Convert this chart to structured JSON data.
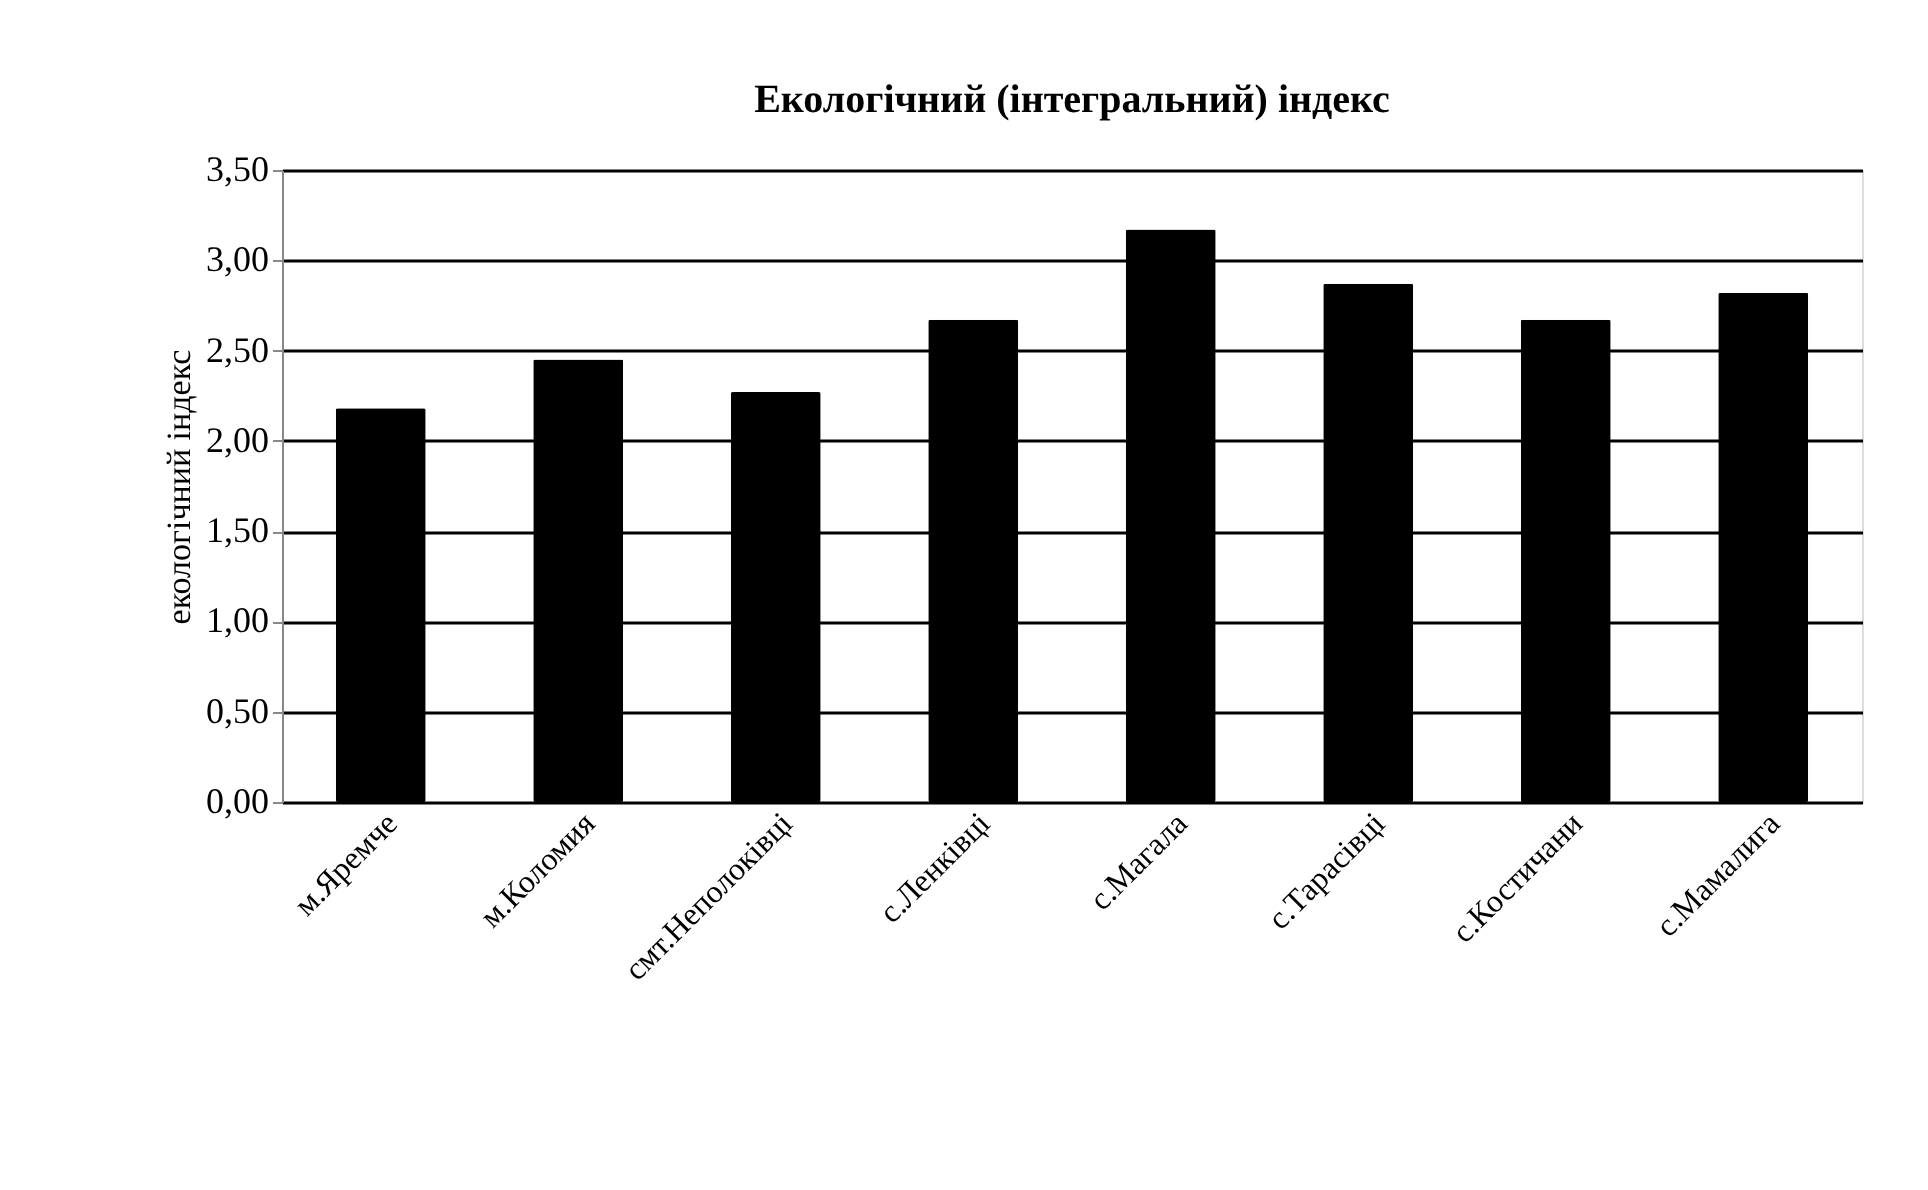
{
  "chart_data": {
    "type": "bar",
    "title": "Екологічний (інтегральний) індекс",
    "ylabel": "екологічний індекс",
    "categories": [
      "м.Яремче",
      "м.Коломия",
      "смт.Неполоківці",
      "с.Ленківці",
      "с.Магала",
      "с.Тарасівці",
      "с.Костичани",
      "с.Мамалига"
    ],
    "values": [
      2.18,
      2.45,
      2.27,
      2.67,
      3.17,
      2.87,
      2.67,
      2.82
    ],
    "color": "#000000",
    "ylim": [
      0,
      3.5
    ],
    "yticks": [
      {
        "value": 0,
        "label": "0,00"
      },
      {
        "value": 0.5,
        "label": "0,50"
      },
      {
        "value": 1,
        "label": "1,00"
      },
      {
        "value": 1.5,
        "label": "1,50"
      },
      {
        "value": 2,
        "label": "2,00"
      },
      {
        "value": 2.5,
        "label": "2,50"
      },
      {
        "value": 3,
        "label": "3,00"
      },
      {
        "value": 3.5,
        "label": "3,50"
      }
    ],
    "grid": "y"
  }
}
